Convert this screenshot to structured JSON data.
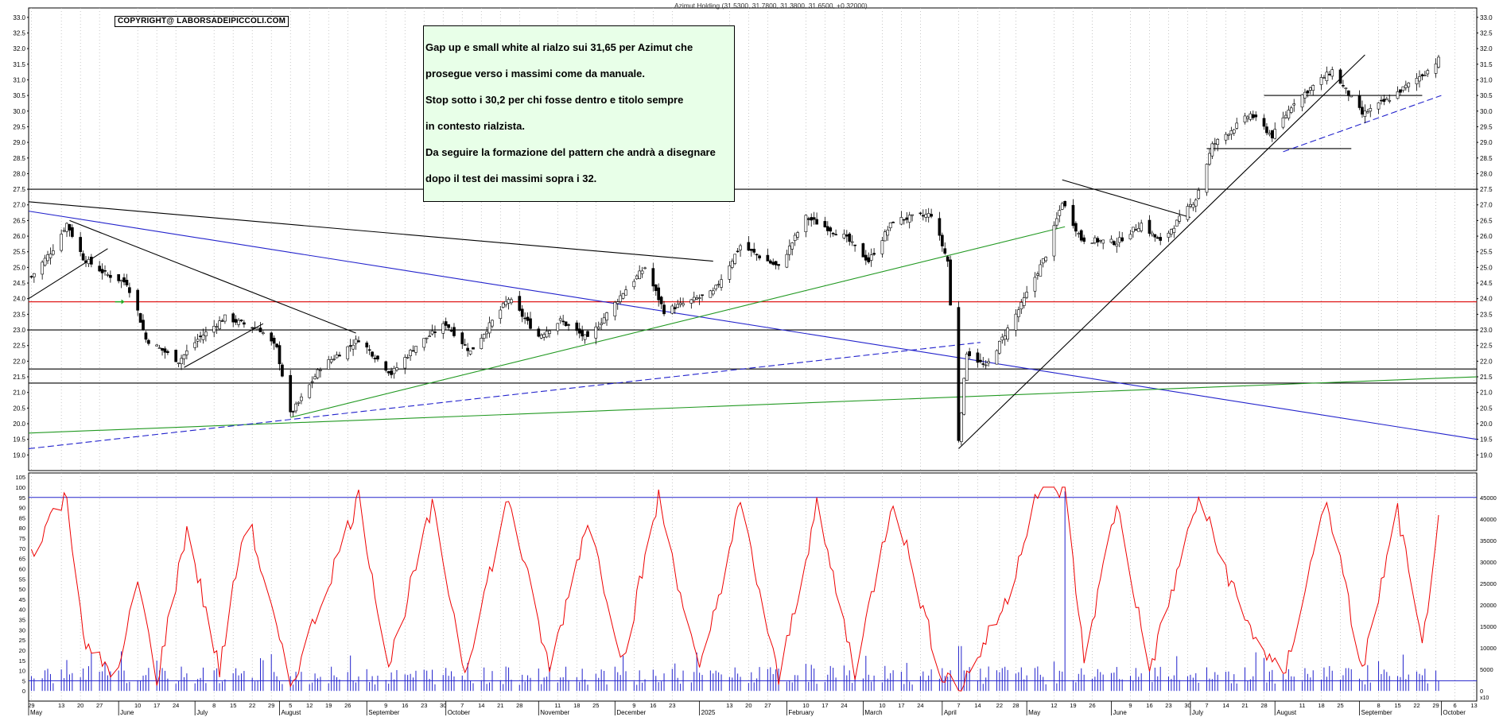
{
  "header": {
    "title": "Azimut Holding (31.5300, 31.7800, 31.3800, 31.6500, +0.32000)",
    "copyright": "COPYRIGHT@ LABORSADEIPICCOLI.COM",
    "note_lines": [
      "Gap up e small white al rialzo sui 31,65 per Azimut che",
      "prosegue  verso i massimi come da manuale.",
      "Stop sotto i 30,2 per chi fosse dentro e titolo sempre",
      "in contesto rialzista.",
      "Da seguire la formazione del pattern che andrà a disegnare",
      "dopo il test dei massimi sopra i 32."
    ]
  },
  "chart_data": [
    {
      "type": "candlestick",
      "title": "Azimut Holding (31.5300, 31.7800, 31.3800, 31.6500, +0.32000)",
      "y_ticks": [
        "19.0",
        "19.5",
        "20.0",
        "20.5",
        "21.0",
        "21.5",
        "22.0",
        "22.5",
        "23.0",
        "23.5",
        "24.0",
        "24.5",
        "25.0",
        "25.5",
        "26.0",
        "26.5",
        "27.0",
        "27.5",
        "28.0",
        "28.5",
        "29.0",
        "29.5",
        "30.0",
        "30.5",
        "31.0",
        "31.5",
        "32.0",
        "32.5",
        "33.0"
      ],
      "ylim": [
        18.5,
        33.3
      ],
      "grid": "vertical dotted",
      "close_path": [
        [
          "2024-05-02",
          24.7
        ],
        [
          "2024-05-10",
          25.6
        ],
        [
          "2024-05-15",
          26.4
        ],
        [
          "2024-05-21",
          25.3
        ],
        [
          "2024-05-29",
          24.8
        ],
        [
          "2024-06-06",
          24.5
        ],
        [
          "2024-06-10",
          23.6
        ],
        [
          "2024-06-13",
          22.7
        ],
        [
          "2024-06-25",
          22.0
        ],
        [
          "2024-07-02",
          22.7
        ],
        [
          "2024-07-12",
          23.4
        ],
        [
          "2024-07-25",
          23.0
        ],
        [
          "2024-07-31",
          22.4
        ],
        [
          "2024-08-05",
          20.3
        ],
        [
          "2024-08-09",
          20.8
        ],
        [
          "2024-08-16",
          21.8
        ],
        [
          "2024-08-30",
          22.7
        ],
        [
          "2024-09-11",
          21.6
        ],
        [
          "2024-09-20",
          22.5
        ],
        [
          "2024-10-01",
          23.2
        ],
        [
          "2024-10-10",
          22.3
        ],
        [
          "2024-10-24",
          24.0
        ],
        [
          "2024-11-04",
          22.8
        ],
        [
          "2024-11-12",
          23.3
        ],
        [
          "2024-11-22",
          22.7
        ],
        [
          "2024-12-05",
          24.2
        ],
        [
          "2024-12-13",
          25.0
        ],
        [
          "2024-12-20",
          23.6
        ],
        [
          "2025-01-07",
          24.2
        ],
        [
          "2025-01-17",
          25.7
        ],
        [
          "2025-01-31",
          25.0
        ],
        [
          "2025-02-10",
          26.6
        ],
        [
          "2025-02-24",
          26.0
        ],
        [
          "2025-03-05",
          25.2
        ],
        [
          "2025-03-14",
          26.5
        ],
        [
          "2025-03-28",
          26.7
        ],
        [
          "2025-04-03",
          25.2
        ],
        [
          "2025-04-07",
          19.5
        ],
        [
          "2025-04-10",
          22.3
        ],
        [
          "2025-04-17",
          21.8
        ],
        [
          "2025-04-30",
          23.8
        ],
        [
          "2025-05-09",
          25.4
        ],
        [
          "2025-05-15",
          27.1
        ],
        [
          "2025-05-22",
          25.9
        ],
        [
          "2025-06-04",
          25.8
        ],
        [
          "2025-06-13",
          26.4
        ],
        [
          "2025-06-20",
          25.8
        ],
        [
          "2025-07-03",
          27.2
        ],
        [
          "2025-07-09",
          28.9
        ],
        [
          "2025-07-23",
          29.9
        ],
        [
          "2025-07-31",
          29.2
        ],
        [
          "2025-08-08",
          30.3
        ],
        [
          "2025-08-22",
          31.3
        ],
        [
          "2025-09-02",
          29.9
        ],
        [
          "2025-09-12",
          30.4
        ],
        [
          "2025-09-26",
          31.3
        ],
        [
          "2025-09-30",
          31.65
        ]
      ],
      "horizontal_levels": [
        {
          "value": 27.5,
          "color": "#000000"
        },
        {
          "value": 23.9,
          "color": "#dd0000"
        },
        {
          "value": 23.0,
          "color": "#000000"
        },
        {
          "value": 21.75,
          "color": "#000000"
        },
        {
          "value": 21.3,
          "color": "#000000"
        }
      ]
    },
    {
      "type": "line+bar",
      "y_ticks_left": [
        "0",
        "5",
        "10",
        "15",
        "20",
        "25",
        "30",
        "35",
        "40",
        "45",
        "50",
        "55",
        "60",
        "65",
        "70",
        "75",
        "80",
        "85",
        "90",
        "95",
        "100",
        "105"
      ],
      "y_ticks_right": [
        "0",
        "5000",
        "10000",
        "15000",
        "20000",
        "25000",
        "30000",
        "35000",
        "40000",
        "45000"
      ],
      "ylim_left": [
        -5,
        107
      ],
      "oscillator_levels": [
        95,
        5
      ],
      "right_unit": "x10",
      "oscillator_path": [
        [
          "2024-05-02",
          68
        ],
        [
          "2024-05-10",
          88
        ],
        [
          "2024-05-15",
          95
        ],
        [
          "2024-05-22",
          20
        ],
        [
          "2024-06-03",
          8
        ],
        [
          "2024-06-10",
          55
        ],
        [
          "2024-06-17",
          5
        ],
        [
          "2024-06-28",
          80
        ],
        [
          "2024-07-10",
          10
        ],
        [
          "2024-07-20",
          88
        ],
        [
          "2024-08-05",
          2
        ],
        [
          "2024-08-30",
          95
        ],
        [
          "2024-09-10",
          12
        ],
        [
          "2024-09-26",
          90
        ],
        [
          "2024-10-08",
          10
        ],
        [
          "2024-10-24",
          95
        ],
        [
          "2024-11-08",
          10
        ],
        [
          "2024-11-22",
          85
        ],
        [
          "2024-12-05",
          15
        ],
        [
          "2024-12-18",
          95
        ],
        [
          "2025-01-02",
          8
        ],
        [
          "2025-01-17",
          92
        ],
        [
          "2025-01-31",
          5
        ],
        [
          "2025-02-14",
          90
        ],
        [
          "2025-02-28",
          10
        ],
        [
          "2025-03-14",
          95
        ],
        [
          "2025-03-31",
          10
        ],
        [
          "2025-04-08",
          2
        ],
        [
          "2025-04-25",
          45
        ],
        [
          "2025-05-05",
          96
        ],
        [
          "2025-05-16",
          99
        ],
        [
          "2025-05-23",
          15
        ],
        [
          "2025-06-04",
          92
        ],
        [
          "2025-06-16",
          10
        ],
        [
          "2025-07-04",
          95
        ],
        [
          "2025-07-21",
          35
        ],
        [
          "2025-08-04",
          5
        ],
        [
          "2025-08-20",
          95
        ],
        [
          "2025-09-02",
          10
        ],
        [
          "2025-09-15",
          88
        ],
        [
          "2025-09-24",
          20
        ],
        [
          "2025-09-30",
          88
        ]
      ]
    }
  ],
  "x_axis": {
    "day_labels": [
      {
        "d": "2024-05-02",
        "t": "29"
      },
      {
        "d": "2024-05-13",
        "t": "13"
      },
      {
        "d": "2024-05-20",
        "t": "20"
      },
      {
        "d": "2024-05-27",
        "t": "27"
      },
      {
        "d": "2024-06-10",
        "t": "10"
      },
      {
        "d": "2024-06-17",
        "t": "17"
      },
      {
        "d": "2024-06-24",
        "t": "24"
      },
      {
        "d": "2024-07-08",
        "t": "8"
      },
      {
        "d": "2024-07-15",
        "t": "15"
      },
      {
        "d": "2024-07-22",
        "t": "22"
      },
      {
        "d": "2024-07-29",
        "t": "29"
      },
      {
        "d": "2024-08-05",
        "t": "5"
      },
      {
        "d": "2024-08-12",
        "t": "12"
      },
      {
        "d": "2024-08-19",
        "t": "19"
      },
      {
        "d": "2024-08-26",
        "t": "26"
      },
      {
        "d": "2024-09-09",
        "t": "9"
      },
      {
        "d": "2024-09-16",
        "t": "16"
      },
      {
        "d": "2024-09-23",
        "t": "23"
      },
      {
        "d": "2024-09-30",
        "t": "30"
      },
      {
        "d": "2024-10-07",
        "t": "7"
      },
      {
        "d": "2024-10-14",
        "t": "14"
      },
      {
        "d": "2024-10-21",
        "t": "21"
      },
      {
        "d": "2024-10-28",
        "t": "28"
      },
      {
        "d": "2024-11-11",
        "t": "11"
      },
      {
        "d": "2024-11-18",
        "t": "18"
      },
      {
        "d": "2024-11-25",
        "t": "25"
      },
      {
        "d": "2024-12-09",
        "t": "9"
      },
      {
        "d": "2024-12-16",
        "t": "16"
      },
      {
        "d": "2024-12-23",
        "t": "23"
      },
      {
        "d": "2025-01-13",
        "t": "13"
      },
      {
        "d": "2025-01-20",
        "t": "20"
      },
      {
        "d": "2025-01-27",
        "t": "27"
      },
      {
        "d": "2025-02-10",
        "t": "10"
      },
      {
        "d": "2025-02-17",
        "t": "17"
      },
      {
        "d": "2025-02-24",
        "t": "24"
      },
      {
        "d": "2025-03-10",
        "t": "10"
      },
      {
        "d": "2025-03-17",
        "t": "17"
      },
      {
        "d": "2025-03-24",
        "t": "24"
      },
      {
        "d": "2025-04-07",
        "t": "7"
      },
      {
        "d": "2025-04-14",
        "t": "14"
      },
      {
        "d": "2025-04-22",
        "t": "22"
      },
      {
        "d": "2025-04-28",
        "t": "28"
      },
      {
        "d": "2025-05-12",
        "t": "12"
      },
      {
        "d": "2025-05-19",
        "t": "19"
      },
      {
        "d": "2025-05-26",
        "t": "26"
      },
      {
        "d": "2025-06-09",
        "t": "9"
      },
      {
        "d": "2025-06-16",
        "t": "16"
      },
      {
        "d": "2025-06-23",
        "t": "23"
      },
      {
        "d": "2025-06-30",
        "t": "30"
      },
      {
        "d": "2025-07-07",
        "t": "7"
      },
      {
        "d": "2025-07-14",
        "t": "14"
      },
      {
        "d": "2025-07-21",
        "t": "21"
      },
      {
        "d": "2025-07-28",
        "t": "28"
      },
      {
        "d": "2025-08-11",
        "t": "11"
      },
      {
        "d": "2025-08-18",
        "t": "18"
      },
      {
        "d": "2025-08-25",
        "t": "25"
      },
      {
        "d": "2025-09-08",
        "t": "8"
      },
      {
        "d": "2025-09-15",
        "t": "15"
      },
      {
        "d": "2025-09-22",
        "t": "22"
      },
      {
        "d": "2025-09-29",
        "t": "29"
      },
      {
        "d": "2025-10-06",
        "t": "6"
      },
      {
        "d": "2025-10-13",
        "t": "13"
      }
    ],
    "month_labels": [
      {
        "d": "2024-05-01",
        "t": "May"
      },
      {
        "d": "2024-06-03",
        "t": "June"
      },
      {
        "d": "2024-07-01",
        "t": "July"
      },
      {
        "d": "2024-08-01",
        "t": "August"
      },
      {
        "d": "2024-09-02",
        "t": "September"
      },
      {
        "d": "2024-10-01",
        "t": "October"
      },
      {
        "d": "2024-11-04",
        "t": "November"
      },
      {
        "d": "2024-12-02",
        "t": "December"
      },
      {
        "d": "2025-01-02",
        "t": "2025"
      },
      {
        "d": "2025-02-03",
        "t": "February"
      },
      {
        "d": "2025-03-03",
        "t": "March"
      },
      {
        "d": "2025-04-01",
        "t": "April"
      },
      {
        "d": "2025-05-02",
        "t": "May"
      },
      {
        "d": "2025-06-02",
        "t": "June"
      },
      {
        "d": "2025-07-01",
        "t": "July"
      },
      {
        "d": "2025-08-01",
        "t": "August"
      },
      {
        "d": "2025-09-01",
        "t": "September"
      },
      {
        "d": "2025-10-01",
        "t": "October"
      }
    ]
  },
  "trendlines": [
    {
      "from": [
        "2024-05-01",
        27.1
      ],
      "to": [
        "2025-01-07",
        25.2
      ],
      "color": "#000000",
      "style": "solid"
    },
    {
      "from": [
        "2024-05-01",
        26.8
      ],
      "to": [
        "2025-10-14",
        19.5
      ],
      "color": "#2222cc",
      "style": "solid"
    },
    {
      "from": [
        "2024-05-01",
        19.7
      ],
      "to": [
        "2025-10-14",
        21.5
      ],
      "color": "#229922",
      "style": "solid"
    },
    {
      "from": [
        "2024-08-05",
        20.2
      ],
      "to": [
        "2025-05-16",
        26.3
      ],
      "color": "#229922",
      "style": "solid"
    },
    {
      "from": [
        "2024-05-01",
        19.2
      ],
      "to": [
        "2025-04-15",
        22.6
      ],
      "color": "#2222cc",
      "style": "dashed"
    },
    {
      "from": [
        "2024-05-01",
        24.0
      ],
      "to": [
        "2024-05-30",
        25.6
      ],
      "color": "#000000",
      "style": "solid"
    },
    {
      "from": [
        "2024-05-16",
        26.5
      ],
      "to": [
        "2024-08-29",
        22.9
      ],
      "color": "#000000",
      "style": "solid"
    },
    {
      "from": [
        "2024-06-27",
        21.8
      ],
      "to": [
        "2024-07-26",
        23.2
      ],
      "color": "#000000",
      "style": "solid"
    },
    {
      "from": [
        "2025-04-07",
        19.2
      ],
      "to": [
        "2025-09-03",
        31.8
      ],
      "color": "#000000",
      "style": "solid"
    },
    {
      "from": [
        "2025-05-15",
        27.8
      ],
      "to": [
        "2025-07-01",
        26.6
      ],
      "color": "#000000",
      "style": "solid"
    },
    {
      "from": [
        "2025-07-07",
        28.8
      ],
      "to": [
        "2025-08-29",
        28.8
      ],
      "color": "#000000",
      "style": "solid"
    },
    {
      "from": [
        "2025-07-28",
        30.5
      ],
      "to": [
        "2025-09-24",
        30.5
      ],
      "color": "#000000",
      "style": "solid"
    },
    {
      "from": [
        "2025-08-04",
        28.7
      ],
      "to": [
        "2025-10-01",
        30.5
      ],
      "color": "#2222cc",
      "style": "dashed"
    }
  ],
  "colors": {
    "oscillator": "#ee0000",
    "volume": "#2222cc",
    "level_lines": "#2222cc",
    "grid": "#b0b0b0",
    "arrow": "#22aa22"
  }
}
